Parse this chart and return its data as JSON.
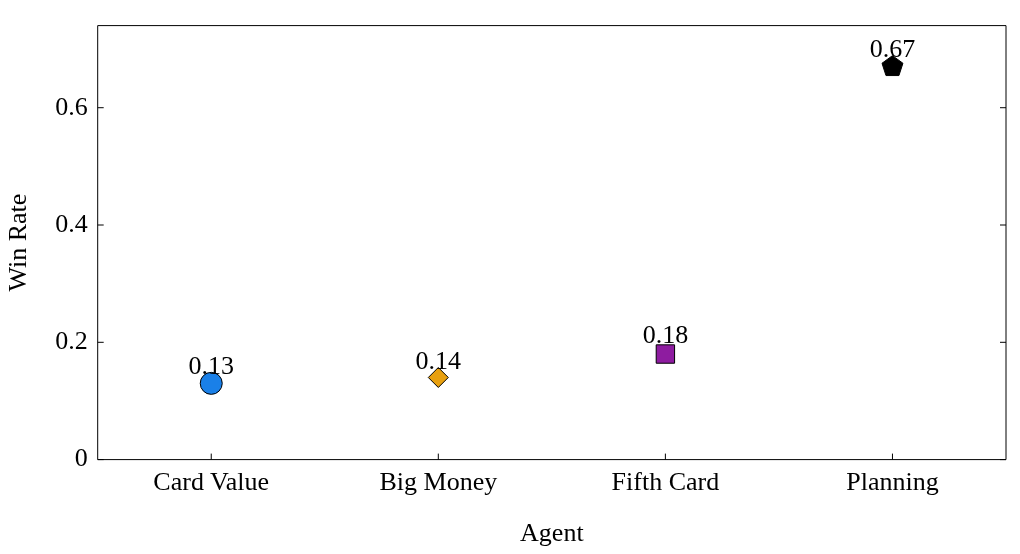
{
  "chart_data": {
    "type": "scatter",
    "xlabel": "Agent",
    "ylabel": "Win Rate",
    "categories": [
      "Card Value",
      "Big Money",
      "Fifth Card",
      "Planning"
    ],
    "ylim": [
      0,
      0.74
    ],
    "yticks": [
      0,
      0.2,
      0.4,
      0.6
    ],
    "grid": false,
    "legend": false,
    "data_labels": true,
    "series": [
      {
        "x": [
          "Card Value"
        ],
        "values": [
          0.13
        ],
        "color": "#1a80e8",
        "marker": "circle"
      },
      {
        "x": [
          "Big Money"
        ],
        "values": [
          0.14
        ],
        "color": "#e8a010",
        "marker": "diamond"
      },
      {
        "x": [
          "Fifth Card"
        ],
        "values": [
          0.18
        ],
        "color": "#8e1ca0",
        "marker": "square"
      },
      {
        "x": [
          "Planning"
        ],
        "values": [
          0.67
        ],
        "color": "#000000"
      }
    ]
  }
}
